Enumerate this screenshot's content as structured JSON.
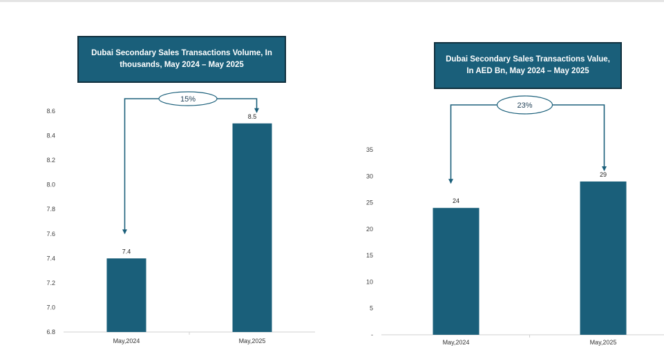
{
  "chart_data": [
    {
      "type": "bar",
      "title": "Dubai Secondary Sales Transactions Volume, In thousands, May 2024 – May 2025",
      "categories": [
        "May,2024",
        "May,2025"
      ],
      "values": [
        7.4,
        8.5
      ],
      "value_labels": [
        "7.4",
        "8.5"
      ],
      "ylim": [
        6.8,
        8.6
      ],
      "yticks": [
        "6.8",
        "7.0",
        "7.2",
        "7.4",
        "7.6",
        "7.8",
        "8.0",
        "8.2",
        "8.4",
        "8.6"
      ],
      "ytick_values": [
        6.8,
        7.0,
        7.2,
        7.4,
        7.6,
        7.8,
        8.0,
        8.2,
        8.4,
        8.6
      ],
      "xlabel": "",
      "ylabel": "",
      "grid": false,
      "growth_label": "15%",
      "bar_color": "#1a5f7a"
    },
    {
      "type": "bar",
      "title": "Dubai Secondary Sales Transactions Value, In AED Bn, May 2024 – May 2025",
      "categories": [
        "May,2024",
        "May,2025"
      ],
      "values": [
        24,
        29
      ],
      "value_labels": [
        "24",
        "29"
      ],
      "ylim": [
        0,
        35
      ],
      "yticks": [
        "-",
        "5",
        "10",
        "15",
        "20",
        "25",
        "30",
        "35"
      ],
      "ytick_values": [
        0,
        5,
        10,
        15,
        20,
        25,
        30,
        35
      ],
      "xlabel": "",
      "ylabel": "",
      "grid": false,
      "growth_label": "23%",
      "bar_color": "#1a5f7a"
    }
  ]
}
